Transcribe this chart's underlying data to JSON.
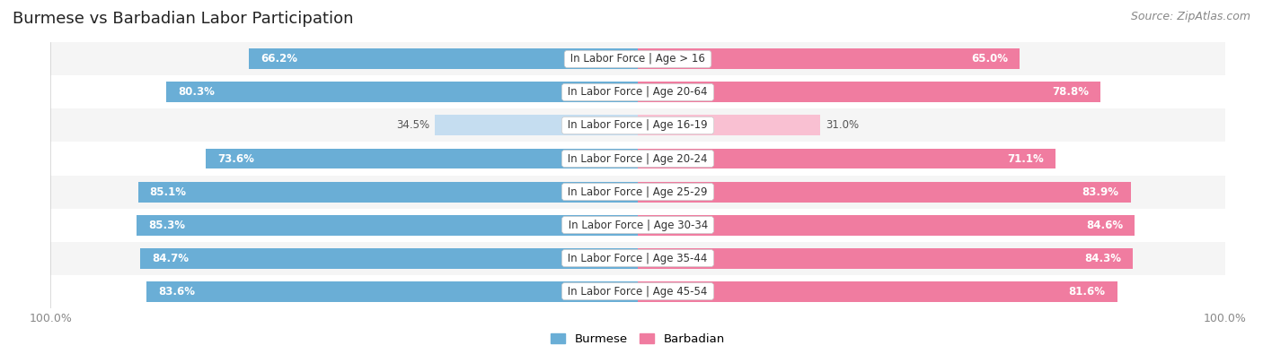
{
  "title": "Burmese vs Barbadian Labor Participation",
  "source": "Source: ZipAtlas.com",
  "categories": [
    "In Labor Force | Age > 16",
    "In Labor Force | Age 20-64",
    "In Labor Force | Age 16-19",
    "In Labor Force | Age 20-24",
    "In Labor Force | Age 25-29",
    "In Labor Force | Age 30-34",
    "In Labor Force | Age 35-44",
    "In Labor Force | Age 45-54"
  ],
  "burmese": [
    66.2,
    80.3,
    34.5,
    73.6,
    85.1,
    85.3,
    84.7,
    83.6
  ],
  "barbadian": [
    65.0,
    78.8,
    31.0,
    71.1,
    83.9,
    84.6,
    84.3,
    81.6
  ],
  "burmese_color": "#6aaed6",
  "barbadian_color": "#f07ca0",
  "burmese_light_color": "#c5ddf0",
  "barbadian_light_color": "#f9c0d2",
  "row_bg_odd": "#f5f5f5",
  "row_bg_even": "#ffffff",
  "bar_height": 0.62,
  "max_val": 100.0,
  "legend_burmese": "Burmese",
  "legend_barbadian": "Barbadian",
  "title_fontsize": 13,
  "source_fontsize": 9,
  "label_fontsize": 8.5,
  "value_fontsize": 8.5
}
